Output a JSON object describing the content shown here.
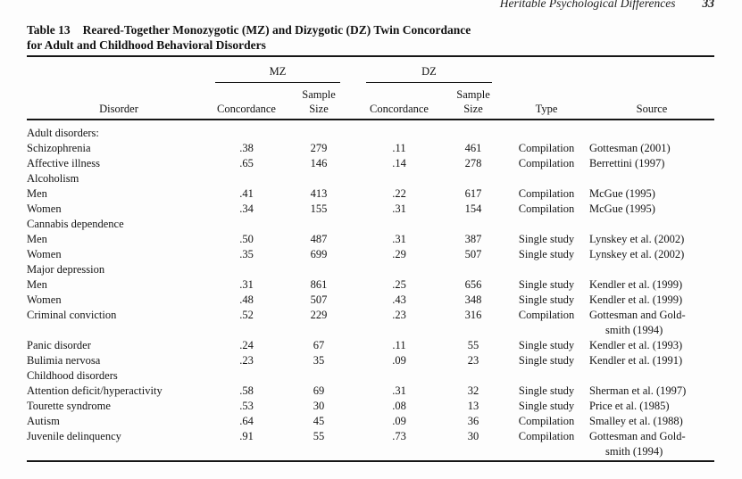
{
  "page_header": {
    "running_title": "Heritable Psychological Differences",
    "page_number": "33"
  },
  "caption": {
    "label": "Table 13",
    "line1": "Reared-Together Monozygotic (MZ) and Dizygotic (DZ) Twin Concordance",
    "line2": "for Adult and Childhood Behavioral Disorders"
  },
  "table": {
    "group_headers": {
      "mz": "MZ",
      "dz": "DZ"
    },
    "header": {
      "disorder": "Disorder",
      "concordance": "Concordance",
      "sample_line1": "Sample",
      "sample_line2": "Size",
      "type": "Type",
      "source": "Source"
    },
    "rows": [
      {
        "indent": 0,
        "disorder": "Adult disorders:",
        "mz_concordance": "",
        "mz_sample": "",
        "dz_concordance": "",
        "dz_sample": "",
        "type": "",
        "source": ""
      },
      {
        "indent": 1,
        "disorder": "Schizophrenia",
        "mz_concordance": ".38",
        "mz_sample": "279",
        "dz_concordance": ".11",
        "dz_sample": "461",
        "type": "Compilation",
        "source": "Gottesman (2001)"
      },
      {
        "indent": 1,
        "disorder": "Affective illness",
        "mz_concordance": ".65",
        "mz_sample": "146",
        "dz_concordance": ".14",
        "dz_sample": "278",
        "type": "Compilation",
        "source": "Berrettini (1997)"
      },
      {
        "indent": 1,
        "disorder": "Alcoholism",
        "mz_concordance": "",
        "mz_sample": "",
        "dz_concordance": "",
        "dz_sample": "",
        "type": "",
        "source": ""
      },
      {
        "indent": 2,
        "disorder": "Men",
        "mz_concordance": ".41",
        "mz_sample": "413",
        "dz_concordance": ".22",
        "dz_sample": "617",
        "type": "Compilation",
        "source": "McGue (1995)"
      },
      {
        "indent": 2,
        "disorder": "Women",
        "mz_concordance": ".34",
        "mz_sample": "155",
        "dz_concordance": ".31",
        "dz_sample": "154",
        "type": "Compilation",
        "source": "McGue (1995)"
      },
      {
        "indent": 1,
        "disorder": "Cannabis dependence",
        "mz_concordance": "",
        "mz_sample": "",
        "dz_concordance": "",
        "dz_sample": "",
        "type": "",
        "source": ""
      },
      {
        "indent": 2,
        "disorder": "Men",
        "mz_concordance": ".50",
        "mz_sample": "487",
        "dz_concordance": ".31",
        "dz_sample": "387",
        "type": "Single study",
        "source": "Lynskey et al. (2002)"
      },
      {
        "indent": 2,
        "disorder": "Women",
        "mz_concordance": ".35",
        "mz_sample": "699",
        "dz_concordance": ".29",
        "dz_sample": "507",
        "type": "Single study",
        "source": "Lynskey et al. (2002)"
      },
      {
        "indent": 1,
        "disorder": "Major depression",
        "mz_concordance": "",
        "mz_sample": "",
        "dz_concordance": "",
        "dz_sample": "",
        "type": "",
        "source": ""
      },
      {
        "indent": 2,
        "disorder": "Men",
        "mz_concordance": ".31",
        "mz_sample": "861",
        "dz_concordance": ".25",
        "dz_sample": "656",
        "type": "Single study",
        "source": "Kendler et al. (1999)"
      },
      {
        "indent": 2,
        "disorder": "Women",
        "mz_concordance": ".48",
        "mz_sample": "507",
        "dz_concordance": ".43",
        "dz_sample": "348",
        "type": "Single study",
        "source": "Kendler et al. (1999)"
      },
      {
        "indent": 1,
        "disorder": "Criminal conviction",
        "mz_concordance": ".52",
        "mz_sample": "229",
        "dz_concordance": ".23",
        "dz_sample": "316",
        "type": "Compilation",
        "source": "Gottesman and Gold-",
        "source_line2": "smith (1994)"
      },
      {
        "indent": 1,
        "disorder": "Panic disorder",
        "mz_concordance": ".24",
        "mz_sample": "67",
        "dz_concordance": ".11",
        "dz_sample": "55",
        "type": "Single study",
        "source": "Kendler et al. (1993)"
      },
      {
        "indent": 1,
        "disorder": "Bulimia nervosa",
        "mz_concordance": ".23",
        "mz_sample": "35",
        "dz_concordance": ".09",
        "dz_sample": "23",
        "type": "Single study",
        "source": "Kendler et al. (1991)"
      },
      {
        "indent": 0,
        "disorder": "Childhood disorders",
        "mz_concordance": "",
        "mz_sample": "",
        "dz_concordance": "",
        "dz_sample": "",
        "type": "",
        "source": ""
      },
      {
        "indent": 1,
        "disorder": "Attention deficit/hyperactivity",
        "mz_concordance": ".58",
        "mz_sample": "69",
        "dz_concordance": ".31",
        "dz_sample": "32",
        "type": "Single study",
        "source": "Sherman et al. (1997)"
      },
      {
        "indent": 1,
        "disorder": "Tourette syndrome",
        "mz_concordance": ".53",
        "mz_sample": "30",
        "dz_concordance": ".08",
        "dz_sample": "13",
        "type": "Single study",
        "source": "Price et al. (1985)"
      },
      {
        "indent": 1,
        "disorder": "Autism",
        "mz_concordance": ".64",
        "mz_sample": "45",
        "dz_concordance": ".09",
        "dz_sample": "36",
        "type": "Compilation",
        "source": "Smalley et al. (1988)"
      },
      {
        "indent": 1,
        "disorder": "Juvenile delinquency",
        "mz_concordance": ".91",
        "mz_sample": "55",
        "dz_concordance": ".73",
        "dz_sample": "30",
        "type": "Compilation",
        "source": "Gottesman and Gold-",
        "source_line2": "smith (1994)"
      }
    ]
  }
}
